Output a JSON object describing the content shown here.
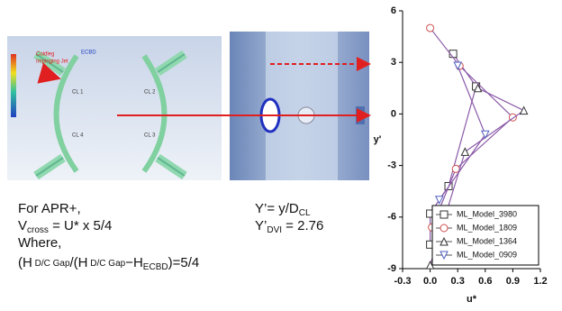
{
  "figure": {
    "cfd_labels": {
      "jet_line1": "Coldleg",
      "jet_line2": "Impinging Jet",
      "ecbd": "ECBD",
      "cl1": "CL 1",
      "cl2": "CL 2",
      "cl4": "CL 4",
      "cl3": "CL 3"
    },
    "left_text": {
      "line1": "For APR+,",
      "v": "V",
      "v_sub": "cross",
      "v_rest": " = U* x 5/4",
      "line3": "Where,",
      "h1": "(H",
      "h1_sub": " D/C Gap",
      "h2": "/(H",
      "h2_sub": " D/C Gap",
      "h3": "−H",
      "h3_sub": "ECBD",
      "h4": ")=5/4"
    },
    "mid_text": {
      "y1": "Y’= y/D",
      "y1_sub": "CL",
      "y2": "Y’",
      "y2_sub": "DVI",
      "y2_rest": " = 2.76"
    }
  },
  "chart_data": {
    "type": "line",
    "x_label": "u*",
    "y_label": "y'",
    "xlim": [
      -0.3,
      1.2
    ],
    "xticks": [
      -0.3,
      {
        "value": 0,
        "label": "0.0"
      },
      0.3,
      0.6,
      0.9,
      1.2
    ],
    "ylim": [
      -9,
      6
    ],
    "yticks": [
      -9,
      -6,
      -3,
      0,
      3,
      6
    ],
    "legend": "lower right",
    "series": [
      {
        "name": "ML_Model_3980",
        "color": "#333333",
        "marker": "square",
        "x": [
          0.25,
          0.5,
          0.2,
          0.0,
          0.0
        ],
        "values": [
          3.5,
          1.6,
          -4.2,
          -5.8,
          -7.6
        ]
      },
      {
        "name": "ML_Model_1809",
        "color": "#d05050",
        "marker": "circle",
        "x": [
          0.0,
          0.32,
          0.9,
          0.28,
          0.02
        ],
        "values": [
          5,
          2.8,
          -0.2,
          -3.2,
          -6.6
        ]
      },
      {
        "name": "ML_Model_1364",
        "color": "#333333",
        "marker": "triangle-up",
        "x": [
          0.52,
          1.02,
          0.38,
          0.0
        ],
        "values": [
          1.5,
          0.2,
          -2.2,
          -8.8
        ]
      },
      {
        "name": "ML_Model_0909",
        "color": "#5060c0",
        "marker": "triangle-down",
        "x": [
          0.3,
          0.6,
          0.1
        ],
        "values": [
          2.8,
          -1.2,
          -5.0
        ]
      }
    ]
  }
}
